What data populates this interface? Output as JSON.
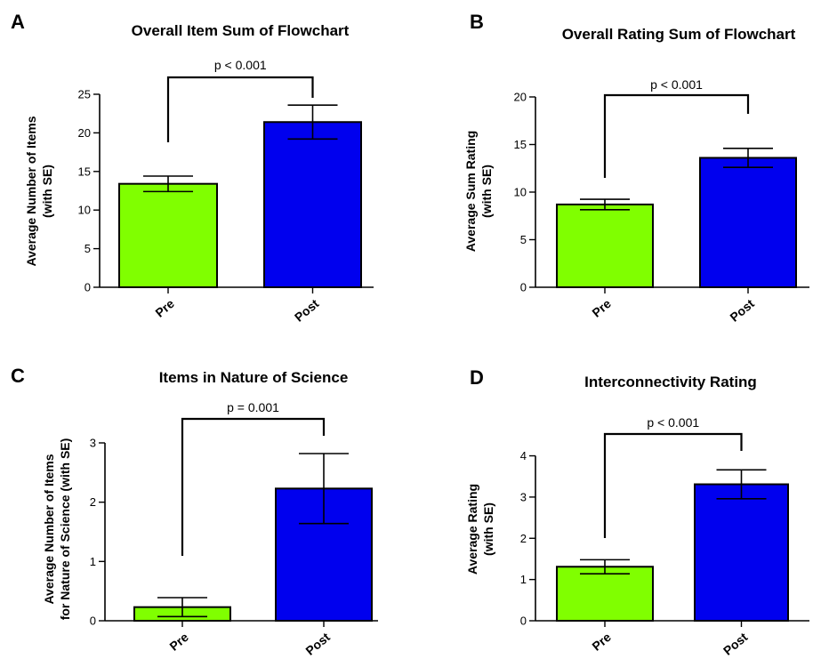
{
  "chart_data": [
    {
      "type": "bar",
      "panel": "A",
      "title": "Overall Item Sum of Flowchart",
      "ylabel": [
        "Average  Number of Items",
        "(with SE)"
      ],
      "categories": [
        "Pre",
        "Post"
      ],
      "values": [
        13.4,
        21.4
      ],
      "errors": [
        1.0,
        2.2
      ],
      "colors": [
        "#80ff00",
        "#0000ee"
      ],
      "ylim": [
        0,
        25
      ],
      "yticks": [
        0,
        5,
        10,
        15,
        20,
        25
      ],
      "significance": "p < 0.001",
      "grid": false
    },
    {
      "type": "bar",
      "panel": "B",
      "title": "Overall Rating Sum of Flowchart",
      "ylabel": [
        "Average Sum Rating",
        "(with SE)"
      ],
      "categories": [
        "Pre",
        "Post"
      ],
      "values": [
        8.7,
        13.6
      ],
      "errors": [
        0.55,
        1.0
      ],
      "colors": [
        "#80ff00",
        "#0000ee"
      ],
      "ylim": [
        0,
        20
      ],
      "yticks": [
        0,
        5,
        10,
        15,
        20
      ],
      "significance": "p < 0.001",
      "grid": false
    },
    {
      "type": "bar",
      "panel": "C",
      "title": "Items in Nature of Science",
      "ylabel": [
        "Average  Number of Items",
        "for Nature of Science (with SE)"
      ],
      "categories": [
        "Pre",
        "Post"
      ],
      "values": [
        0.23,
        2.23
      ],
      "errors": [
        0.16,
        0.59
      ],
      "colors": [
        "#80ff00",
        "#0000ee"
      ],
      "ylim": [
        0,
        3
      ],
      "yticks": [
        0,
        1,
        2,
        3
      ],
      "significance": "p = 0.001",
      "grid": false
    },
    {
      "type": "bar",
      "panel": "D",
      "title": "Interconnectivity Rating",
      "ylabel": [
        "Average Rating",
        "(with SE)"
      ],
      "categories": [
        "Pre",
        "Post"
      ],
      "values": [
        1.31,
        3.31
      ],
      "errors": [
        0.17,
        0.35
      ],
      "colors": [
        "#80ff00",
        "#0000ee"
      ],
      "ylim": [
        0,
        4.4
      ],
      "yticks": [
        0,
        1,
        2,
        3,
        4
      ],
      "significance": "p < 0.001",
      "grid": false
    }
  ]
}
